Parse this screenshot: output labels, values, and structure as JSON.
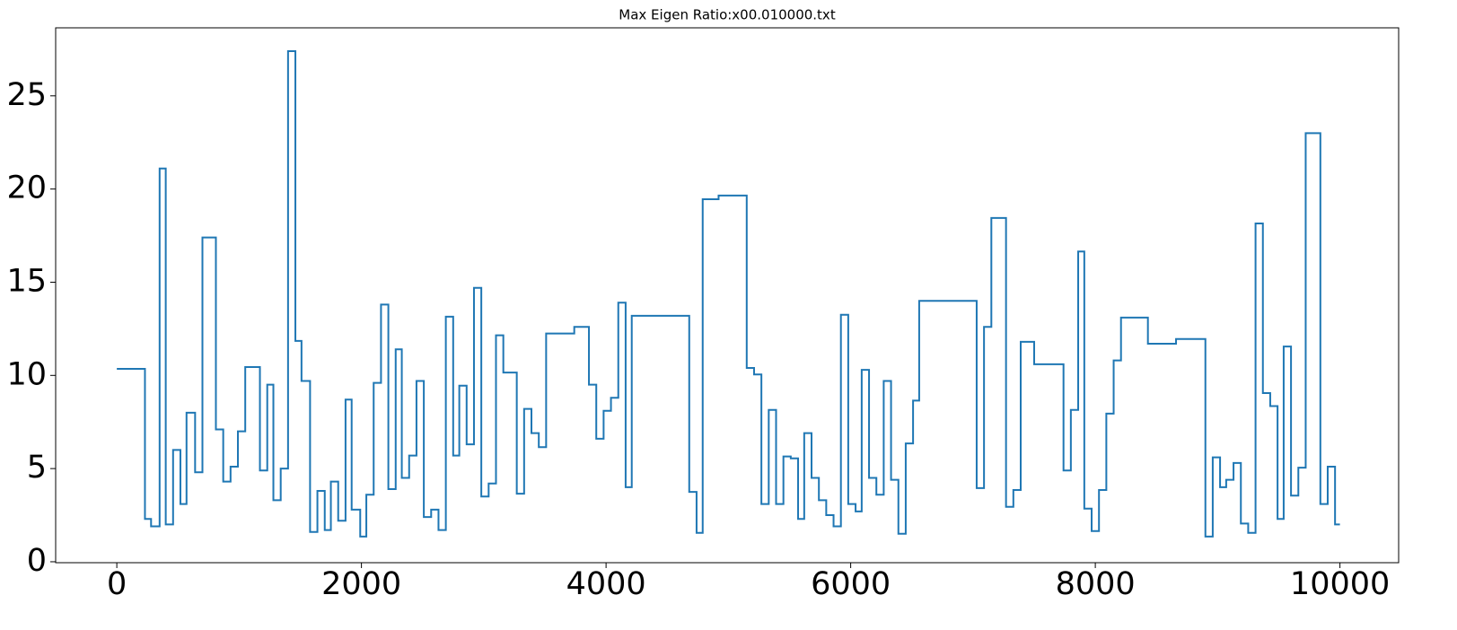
{
  "chart_data": {
    "type": "line",
    "drawstyle": "steps-post",
    "title": "Max Eigen Ratio:x00.010000.txt",
    "x": [
      0,
      230,
      280,
      350,
      400,
      460,
      520,
      570,
      640,
      700,
      810,
      870,
      930,
      990,
      1050,
      1170,
      1230,
      1280,
      1340,
      1400,
      1460,
      1510,
      1580,
      1640,
      1700,
      1750,
      1810,
      1870,
      1920,
      1990,
      2040,
      2100,
      2160,
      2220,
      2280,
      2330,
      2390,
      2450,
      2510,
      2570,
      2630,
      2690,
      2750,
      2800,
      2860,
      2920,
      2980,
      3040,
      3100,
      3160,
      3270,
      3330,
      3390,
      3450,
      3510,
      3740,
      3860,
      3920,
      3980,
      4040,
      4100,
      4160,
      4210,
      4680,
      4740,
      4790,
      4920,
      5150,
      5210,
      5270,
      5330,
      5390,
      5450,
      5510,
      5570,
      5620,
      5680,
      5740,
      5800,
      5860,
      5920,
      5980,
      6040,
      6090,
      6150,
      6210,
      6270,
      6330,
      6390,
      6450,
      6510,
      6560,
      7030,
      7090,
      7150,
      7270,
      7330,
      7390,
      7500,
      7740,
      7800,
      7860,
      7910,
      7970,
      8030,
      8090,
      8150,
      8210,
      8430,
      8660,
      8900,
      8960,
      9020,
      9070,
      9130,
      9190,
      9250,
      9310,
      9370,
      9430,
      9490,
      9540,
      9600,
      9660,
      9720,
      9840,
      9900,
      9960,
      10000
    ],
    "series": [
      {
        "color": "#1f77b4",
        "values": [
          10.35,
          2.3,
          1.9,
          21.1,
          2.0,
          6.0,
          3.1,
          8.0,
          4.8,
          17.4,
          7.1,
          4.3,
          5.1,
          7.0,
          10.45,
          4.9,
          9.5,
          3.3,
          5.0,
          27.4,
          11.85,
          9.7,
          1.6,
          3.8,
          1.7,
          4.3,
          2.2,
          8.7,
          2.8,
          1.35,
          3.6,
          9.6,
          13.8,
          3.9,
          11.4,
          4.5,
          5.7,
          9.7,
          2.4,
          2.8,
          1.7,
          13.15,
          5.7,
          9.45,
          6.3,
          14.7,
          3.5,
          4.2,
          12.15,
          10.15,
          3.65,
          8.2,
          6.9,
          6.15,
          12.25,
          12.6,
          9.5,
          6.6,
          8.1,
          8.8,
          13.9,
          4.0,
          13.2,
          3.75,
          1.55,
          19.45,
          19.65,
          10.4,
          10.05,
          3.1,
          8.15,
          3.1,
          5.65,
          5.55,
          2.3,
          6.9,
          4.5,
          3.3,
          2.5,
          1.9,
          13.25,
          3.1,
          2.7,
          10.3,
          4.5,
          3.6,
          9.7,
          4.4,
          1.5,
          6.35,
          8.65,
          14.0,
          3.95,
          12.6,
          18.45,
          2.95,
          3.85,
          11.8,
          10.6,
          4.9,
          8.15,
          16.65,
          2.85,
          1.65,
          3.85,
          7.95,
          10.8,
          13.1,
          11.7,
          11.95,
          1.35,
          5.6,
          4.0,
          4.4,
          5.3,
          2.05,
          1.55,
          18.15,
          9.05,
          8.35,
          2.3,
          11.55,
          3.55,
          5.05,
          23.0,
          3.1,
          5.1,
          2.0,
          2.0
        ]
      }
    ],
    "xlim": [
      -500,
      10480
    ],
    "ylim": [
      -0.05,
      28.65
    ],
    "xticks": [
      0,
      2000,
      4000,
      6000,
      8000,
      10000
    ],
    "yticks": [
      0,
      5,
      10,
      15,
      20,
      25
    ],
    "grid": false
  }
}
